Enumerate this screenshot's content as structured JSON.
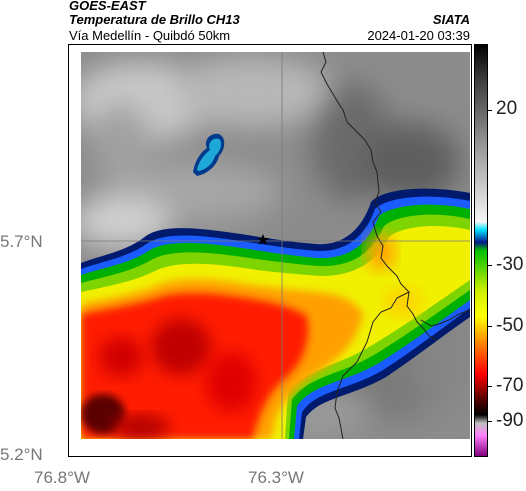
{
  "header": {
    "satellite": "GOES-EAST",
    "product": "Temperatura de Brillo CH13",
    "region": "Vía Medellín - Quibdó 50km",
    "organization": "SIATA",
    "timestamp": "2024-01-20 03:39"
  },
  "axes": {
    "lat_labels": [
      "5.7°N",
      "5.2°N"
    ],
    "lon_labels": [
      "76.8°W",
      "76.3°W"
    ]
  },
  "colorbar": {
    "tick_labels": [
      "20",
      "-30",
      "-50",
      "-70",
      "-90"
    ]
  },
  "colors": {
    "background": "#ffffff",
    "cold_top": "#ff1a00",
    "warm_ground": "#8a8a8a",
    "boundary": "#222222"
  }
}
